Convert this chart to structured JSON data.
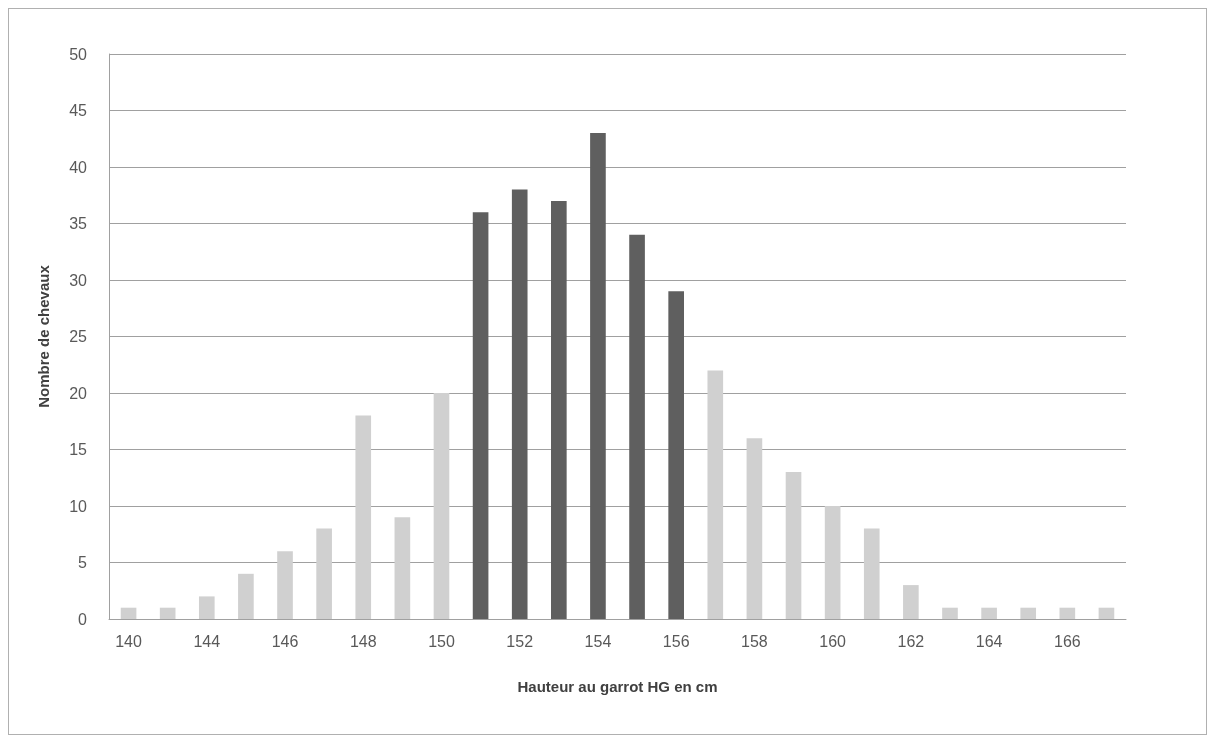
{
  "chart_data": {
    "type": "bar",
    "xlabel": "Hauteur au garrot HG en cm",
    "ylabel": "Nombre de chevaux",
    "categories": [
      "140",
      null,
      "144",
      null,
      "146",
      null,
      "148",
      null,
      "150",
      null,
      "152",
      null,
      "154",
      null,
      "156",
      null,
      "158",
      null,
      "160",
      null,
      "162",
      null,
      "164",
      null,
      "166",
      null
    ],
    "values": [
      1,
      1,
      2,
      4,
      6,
      8,
      18,
      9,
      20,
      36,
      38,
      37,
      43,
      34,
      29,
      22,
      16,
      13,
      10,
      8,
      3,
      1,
      1,
      1,
      1,
      1
    ],
    "colors": [
      "#d0d0d0",
      "#d0d0d0",
      "#d0d0d0",
      "#d0d0d0",
      "#d0d0d0",
      "#d0d0d0",
      "#d0d0d0",
      "#d0d0d0",
      "#d0d0d0",
      "#5f5f5f",
      "#5f5f5f",
      "#5f5f5f",
      "#5f5f5f",
      "#5f5f5f",
      "#5f5f5f",
      "#d0d0d0",
      "#d0d0d0",
      "#d0d0d0",
      "#d0d0d0",
      "#d0d0d0",
      "#d0d0d0",
      "#d0d0d0",
      "#d0d0d0",
      "#d0d0d0",
      "#d0d0d0",
      "#d0d0d0"
    ],
    "ylim": [
      0,
      50
    ],
    "yticks": [
      0,
      5,
      10,
      15,
      20,
      25,
      30,
      35,
      40,
      45,
      50
    ],
    "grid": "y"
  }
}
